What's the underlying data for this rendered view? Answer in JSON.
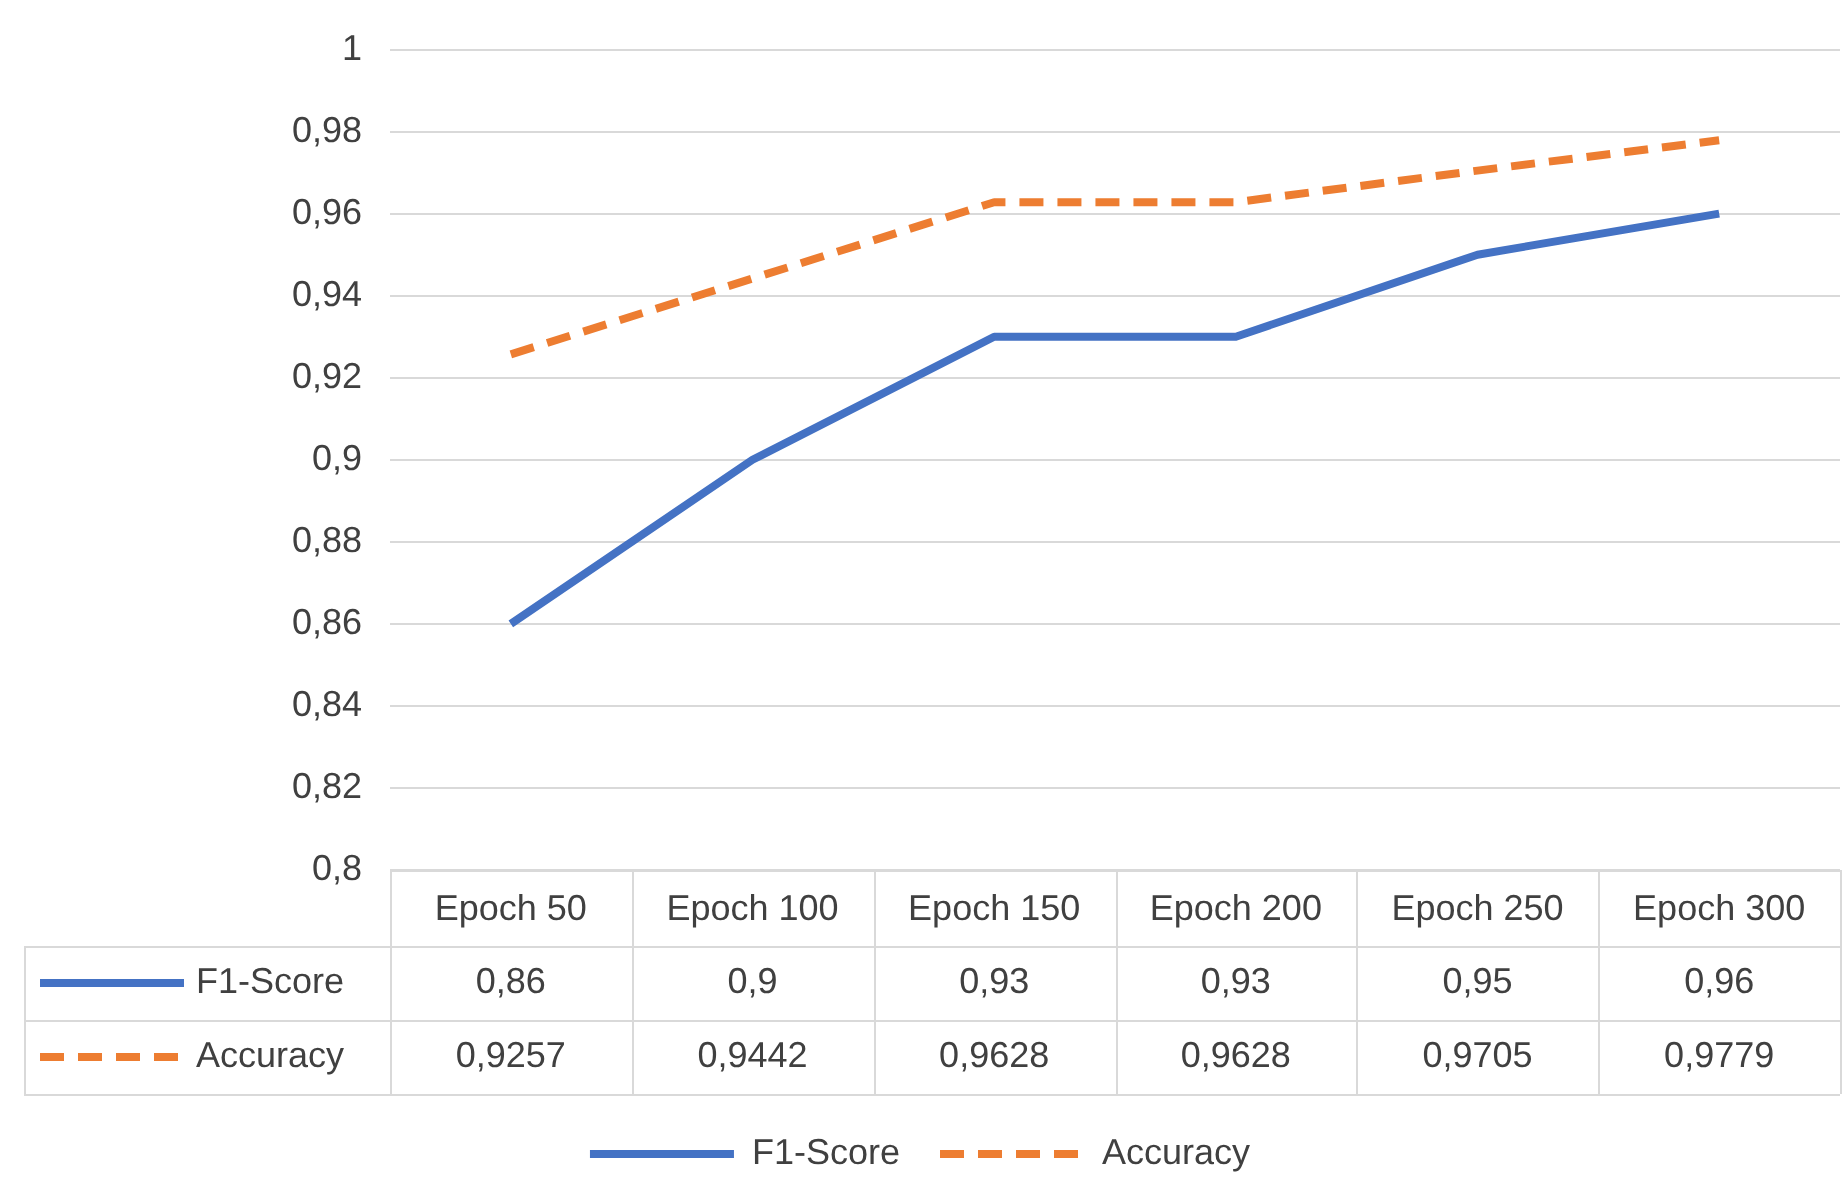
{
  "chart_data": {
    "type": "line",
    "categories": [
      "Epoch 50",
      "Epoch 100",
      "Epoch 150",
      "Epoch 200",
      "Epoch 250",
      "Epoch 300"
    ],
    "ylim": [
      0.8,
      1
    ],
    "yticks": [
      {
        "value": 0.8,
        "label": "0,8"
      },
      {
        "value": 0.82,
        "label": "0,82"
      },
      {
        "value": 0.84,
        "label": "0,84"
      },
      {
        "value": 0.86,
        "label": "0,86"
      },
      {
        "value": 0.88,
        "label": "0,88"
      },
      {
        "value": 0.9,
        "label": "0,9"
      },
      {
        "value": 0.92,
        "label": "0,92"
      },
      {
        "value": 0.94,
        "label": "0,94"
      },
      {
        "value": 0.96,
        "label": "0,96"
      },
      {
        "value": 0.98,
        "label": "0,98"
      },
      {
        "value": 1,
        "label": "1"
      }
    ],
    "grid": "y",
    "legend": "bottom",
    "marker": "none",
    "series": [
      {
        "name": "F1-Score",
        "color": "#4472c4",
        "line_style": "solid",
        "values": [
          0.86,
          0.9,
          0.93,
          0.93,
          0.95,
          0.96
        ],
        "value_labels": [
          "0,86",
          "0,9",
          "0,93",
          "0,93",
          "0,95",
          "0,96"
        ]
      },
      {
        "name": "Accuracy",
        "color": "#ed7d31",
        "line_style": "dashed",
        "values": [
          0.9257,
          0.9442,
          0.9628,
          0.9628,
          0.9705,
          0.9779
        ],
        "value_labels": [
          "0,9257",
          "0,9442",
          "0,9628",
          "0,9628",
          "0,9705",
          "0,9779"
        ]
      }
    ]
  }
}
